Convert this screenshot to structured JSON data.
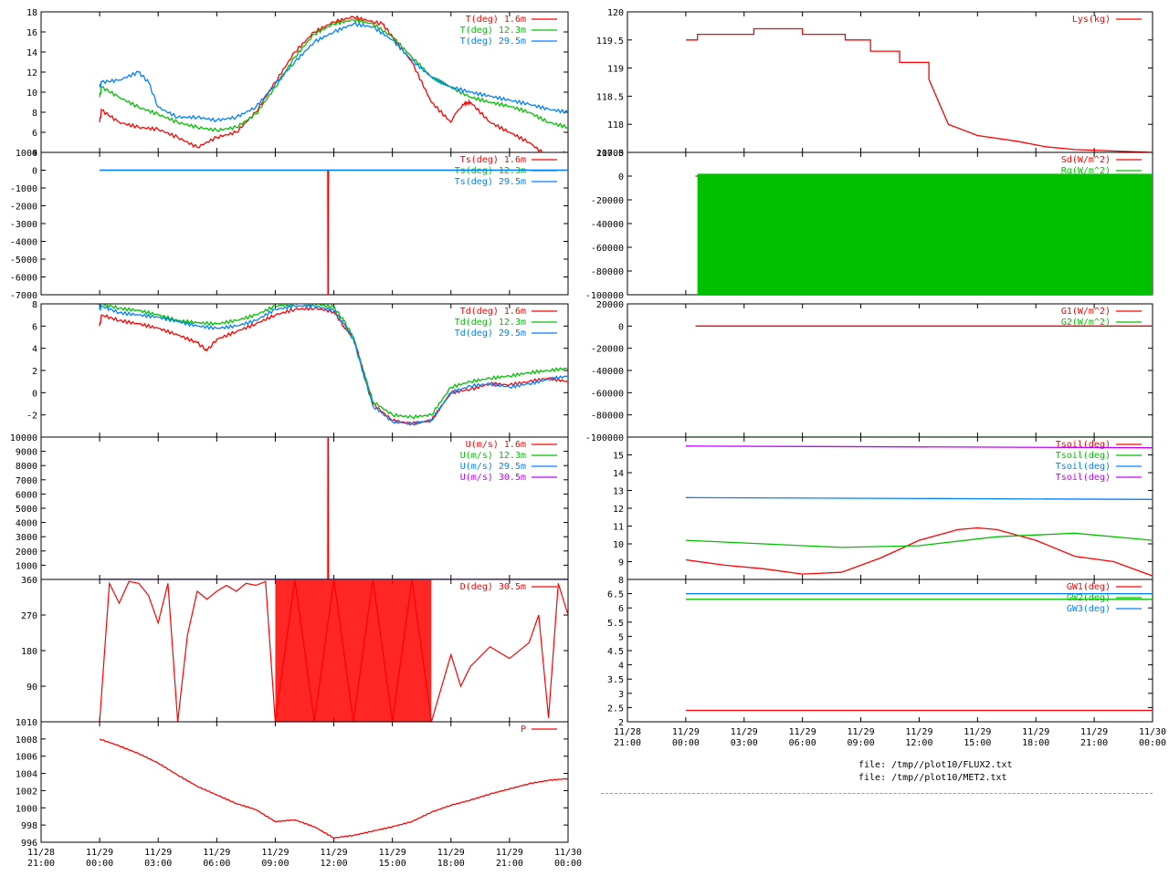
{
  "colors": {
    "red": "#ff0000",
    "green": "#00c000",
    "blue": "#0080ff",
    "magenta": "#c000ff"
  },
  "time_axis": {
    "range_hours": [
      -3,
      24
    ],
    "ticks": [
      {
        "h": -3,
        "date": "11/28",
        "time": "21:00"
      },
      {
        "h": 0,
        "date": "11/29",
        "time": "00:00"
      },
      {
        "h": 3,
        "date": "11/29",
        "time": "03:00"
      },
      {
        "h": 6,
        "date": "11/29",
        "time": "06:00"
      },
      {
        "h": 9,
        "date": "11/29",
        "time": "09:00"
      },
      {
        "h": 12,
        "date": "11/29",
        "time": "12:00"
      },
      {
        "h": 15,
        "date": "11/29",
        "time": "15:00"
      },
      {
        "h": 18,
        "date": "11/29",
        "time": "18:00"
      },
      {
        "h": 21,
        "date": "11/29",
        "time": "21:00"
      },
      {
        "h": 24,
        "date": "11/30",
        "time": "00:00"
      }
    ]
  },
  "files": [
    "file: /tmp//plot10/FLUX2.txt",
    "file: /tmp//plot10/MET2.txt"
  ],
  "chart_data": [
    {
      "id": "T",
      "type": "line",
      "ylim": [
        4,
        18
      ],
      "yticks": [
        4,
        6,
        8,
        10,
        12,
        14,
        16,
        18
      ],
      "series": [
        {
          "name": "T(deg)  1.6m",
          "color": "red",
          "x": [
            0,
            0.1,
            1,
            2,
            3,
            4,
            5,
            6,
            7,
            8,
            9,
            10,
            11,
            12,
            13,
            14,
            14.5,
            15,
            16,
            17,
            18,
            18.6,
            19,
            20,
            21,
            22,
            23,
            24
          ],
          "y": [
            7,
            8.2,
            7,
            6.5,
            6.3,
            5.5,
            4.5,
            5.5,
            6,
            8,
            11,
            14,
            16,
            17,
            17.5,
            17,
            16.8,
            15.5,
            13,
            9,
            7,
            8.8,
            9,
            7,
            6,
            5,
            3.5,
            4
          ]
        },
        {
          "name": "T(deg) 12.3m",
          "color": "green",
          "x": [
            0,
            0.1,
            1,
            2,
            3,
            4,
            5,
            6,
            7,
            8,
            9,
            10,
            11,
            12,
            13,
            14,
            15,
            16,
            17,
            18,
            19,
            20,
            21,
            22,
            23,
            24
          ],
          "y": [
            9.5,
            10.5,
            9.5,
            8.5,
            7.8,
            7,
            6.5,
            6.2,
            6.5,
            7.8,
            10.5,
            13.5,
            15.8,
            16.8,
            17.2,
            16.8,
            15.5,
            13.5,
            11.5,
            10.5,
            9.5,
            9,
            8.6,
            8,
            7,
            6.5
          ]
        },
        {
          "name": "T(deg) 29.5m",
          "color": "blue",
          "x": [
            0,
            0.1,
            1,
            2,
            2.5,
            3,
            4,
            5,
            6,
            7,
            8,
            9,
            10,
            11,
            12,
            13,
            14,
            15,
            16,
            17,
            18,
            19,
            20,
            21,
            22,
            23,
            24
          ],
          "y": [
            10.5,
            11,
            11.2,
            12,
            11,
            8.5,
            7.5,
            7.5,
            7.2,
            7.5,
            8.5,
            10.8,
            13,
            15,
            16,
            16.8,
            16.5,
            15.2,
            13.2,
            11.5,
            10.5,
            10,
            9.6,
            9.2,
            8.8,
            8.3,
            8
          ]
        }
      ]
    },
    {
      "id": "Ts",
      "type": "line",
      "ylim": [
        -7000,
        1000
      ],
      "yticks": [
        -7000,
        -6000,
        -5000,
        -4000,
        -3000,
        -2000,
        -1000,
        0,
        1000
      ],
      "series": [
        {
          "name": "Ts(deg)  1.6m",
          "color": "red",
          "x": [
            0,
            11.69,
            11.7,
            11.72,
            11.73,
            24
          ],
          "y": [
            0,
            0,
            -7000,
            -7000,
            0,
            0
          ]
        },
        {
          "name": "Ts(deg) 12.3m",
          "color": "green",
          "x": [
            0,
            24
          ],
          "y": [
            0,
            0
          ]
        },
        {
          "name": "Ts(deg) 29.5m",
          "color": "blue",
          "x": [
            0,
            24
          ],
          "y": [
            0,
            0
          ]
        }
      ]
    },
    {
      "id": "Td",
      "type": "line",
      "ylim": [
        -4,
        8
      ],
      "yticks": [
        -2,
        0,
        2,
        4,
        6,
        8
      ],
      "series": [
        {
          "name": "Td(deg)  1.6m",
          "color": "red",
          "x": [
            0,
            0.1,
            1,
            2,
            3,
            4,
            5,
            5.5,
            6,
            7,
            8,
            9,
            10,
            11,
            12,
            12.5,
            13,
            13.5,
            14,
            15,
            16,
            17,
            18,
            19,
            20,
            21,
            22,
            23,
            24
          ],
          "y": [
            6,
            7,
            6.5,
            6.2,
            5.8,
            5.2,
            4.5,
            3.8,
            4.8,
            5.5,
            6.2,
            7,
            7.5,
            7.6,
            7.3,
            6,
            5,
            2,
            -1,
            -2.5,
            -2.8,
            -2.5,
            0,
            0.3,
            0.8,
            0.7,
            1,
            1.3,
            1
          ]
        },
        {
          "name": "Td(deg) 12.3m",
          "color": "green",
          "x": [
            0,
            0.1,
            1,
            2,
            3,
            4,
            5,
            6,
            7,
            8,
            9,
            10,
            11,
            12,
            12.5,
            13,
            13.5,
            14,
            15,
            16,
            17,
            18,
            19,
            20,
            21,
            22,
            23,
            24
          ],
          "y": [
            7.5,
            8,
            7.6,
            7.4,
            7,
            6.5,
            6.3,
            6.2,
            6.5,
            7,
            7.8,
            8,
            8,
            7.7,
            6.5,
            5,
            2,
            -0.8,
            -2,
            -2.2,
            -2,
            0.5,
            1,
            1.3,
            1.5,
            1.8,
            2,
            2.2
          ]
        },
        {
          "name": "Td(deg) 29.5m",
          "color": "blue",
          "x": [
            0,
            0.1,
            1,
            2,
            3,
            4,
            5,
            6,
            7,
            8,
            9,
            10,
            11,
            12,
            12.5,
            13,
            13.5,
            14,
            15,
            16,
            17,
            18,
            19,
            20,
            21,
            22,
            23,
            24
          ],
          "y": [
            7.5,
            7.8,
            7.2,
            7,
            6.8,
            6.4,
            6,
            5.8,
            6,
            6.5,
            7.5,
            7.8,
            7.8,
            7.4,
            6.2,
            4.8,
            1.8,
            -1.2,
            -2.6,
            -2.8,
            -2.5,
            0,
            0.6,
            0.8,
            0.5,
            0.8,
            1.2,
            1.5
          ]
        }
      ]
    },
    {
      "id": "U",
      "type": "line",
      "ylim": [
        0,
        10000
      ],
      "yticks": [
        1000,
        2000,
        3000,
        4000,
        5000,
        6000,
        7000,
        8000,
        9000,
        10000
      ],
      "series": [
        {
          "name": "U(m/s)  1.6m",
          "color": "red",
          "x": [
            0,
            11.69,
            11.7,
            11.72,
            11.73,
            24
          ],
          "y": [
            0,
            0,
            10000,
            10000,
            0,
            0
          ]
        },
        {
          "name": "U(m/s) 12.3m",
          "color": "green",
          "x": [
            0,
            24
          ],
          "y": [
            0,
            0
          ]
        },
        {
          "name": "U(m/s) 29.5m",
          "color": "blue",
          "x": [
            0,
            24
          ],
          "y": [
            0,
            0
          ]
        },
        {
          "name": "U(m/s) 30.5m",
          "color": "magenta",
          "x": [
            0,
            24
          ],
          "y": [
            0,
            0
          ]
        }
      ]
    },
    {
      "id": "D",
      "type": "line",
      "ylim": [
        0,
        360
      ],
      "yticks": [
        90,
        180,
        270,
        360
      ],
      "series": [
        {
          "name": "D(deg)  30.5m",
          "color": "red",
          "x": [
            0,
            0.5,
            1,
            1.5,
            2,
            2.5,
            3,
            3.5,
            4,
            4.5,
            5,
            5.5,
            6,
            6.5,
            7,
            7.5,
            8,
            8.5,
            9,
            10,
            11,
            12,
            13,
            14,
            15,
            16,
            17,
            18,
            18.5,
            19,
            20,
            21,
            22,
            22.5,
            23,
            23.5,
            24
          ],
          "y": [
            0,
            350,
            300,
            355,
            350,
            320,
            250,
            350,
            0,
            220,
            330,
            310,
            330,
            345,
            330,
            350,
            345,
            355,
            0,
            360,
            0,
            360,
            0,
            360,
            0,
            360,
            0,
            170,
            90,
            140,
            190,
            160,
            200,
            270,
            10,
            350,
            270
          ]
        }
      ]
    },
    {
      "id": "P",
      "type": "line",
      "ylim": [
        996,
        1010
      ],
      "yticks": [
        996,
        998,
        1000,
        1002,
        1004,
        1006,
        1008,
        1010
      ],
      "series": [
        {
          "name": "P",
          "color": "red",
          "x": [
            0,
            1,
            2,
            3,
            4,
            5,
            6,
            7,
            8,
            9,
            10,
            11,
            12,
            13,
            14,
            15,
            16,
            17,
            18,
            19,
            20,
            21,
            22,
            23,
            24
          ],
          "y": [
            1008,
            1007.2,
            1006.3,
            1005.2,
            1003.8,
            1002.5,
            1001.5,
            1000.5,
            999.8,
            998.4,
            998.6,
            997.8,
            996.5,
            996.8,
            997.3,
            997.8,
            998.4,
            999.5,
            1000.3,
            1000.9,
            1001.6,
            1002.2,
            1002.8,
            1003.2,
            1003.4
          ]
        }
      ]
    },
    {
      "id": "Lys",
      "type": "line",
      "ylim": [
        117.5,
        120
      ],
      "yticks": [
        117.5,
        118,
        118.5,
        119,
        119.5,
        120
      ],
      "series": [
        {
          "name": "Lys(kg)",
          "color": "red",
          "x": [
            0,
            0.6,
            0.6,
            1.8,
            1.8,
            3.5,
            3.5,
            6,
            6,
            8.2,
            8.2,
            9.5,
            9.5,
            11,
            11,
            12.5,
            12.5,
            13.5,
            13.5,
            15,
            15,
            17,
            17,
            18.5,
            18.5,
            20,
            20,
            24
          ],
          "y": [
            119.5,
            119.5,
            119.6,
            119.6,
            119.6,
            119.6,
            119.7,
            119.7,
            119.6,
            119.6,
            119.5,
            119.5,
            119.3,
            119.3,
            119.1,
            119.1,
            118.8,
            118,
            118,
            117.8,
            117.8,
            117.7,
            117.7,
            117.6,
            117.6,
            117.55,
            117.55,
            117.5
          ]
        }
      ]
    },
    {
      "id": "Sd",
      "type": "line",
      "ylim": [
        -100000,
        20000
      ],
      "yticks": [
        -100000,
        -80000,
        -60000,
        -40000,
        -20000,
        0,
        20000
      ],
      "series": [
        {
          "name": "Sd(W/m^2)",
          "color": "red",
          "x": [
            0.5,
            24
          ],
          "y": [
            0,
            0
          ]
        },
        {
          "name": "Rg(W/m^2)",
          "color": "green",
          "x": [
            0.5,
            24
          ],
          "y": [
            0,
            0
          ]
        }
      ]
    },
    {
      "id": "G",
      "type": "line",
      "ylim": [
        -100000,
        20000
      ],
      "yticks": [
        -100000,
        -80000,
        -60000,
        -40000,
        -20000,
        0,
        20000
      ],
      "series": [
        {
          "name": "G1(W/m^2)",
          "color": "red",
          "x": [
            0.5,
            24
          ],
          "y": [
            0,
            0
          ]
        },
        {
          "name": "G2(W/m^2)",
          "color": "green",
          "x": [
            0,
            24
          ],
          "y": [
            -100000,
            -100000
          ]
        }
      ]
    },
    {
      "id": "Tsoil",
      "type": "line",
      "ylim": [
        8,
        16
      ],
      "yticks": [
        8,
        9,
        10,
        11,
        12,
        13,
        14,
        15
      ],
      "series": [
        {
          "name": "Tsoil(deg)",
          "color": "red",
          "x": [
            0,
            2,
            4,
            6,
            8,
            10,
            12,
            14,
            15,
            16,
            18,
            20,
            22,
            24
          ],
          "y": [
            9.1,
            8.8,
            8.6,
            8.3,
            8.4,
            9.2,
            10.2,
            10.8,
            10.9,
            10.8,
            10.2,
            9.3,
            9,
            8.2
          ]
        },
        {
          "name": "Tsoil(deg)",
          "color": "green",
          "x": [
            0,
            4,
            8,
            12,
            16,
            20,
            24
          ],
          "y": [
            10.2,
            10,
            9.8,
            9.9,
            10.4,
            10.6,
            10.2
          ]
        },
        {
          "name": "Tsoil(deg)",
          "color": "blue",
          "x": [
            0,
            24
          ],
          "y": [
            12.6,
            12.5
          ]
        },
        {
          "name": "Tsoil(deg)",
          "color": "magenta",
          "x": [
            0,
            24
          ],
          "y": [
            15.5,
            15.4
          ]
        }
      ]
    },
    {
      "id": "GW",
      "type": "line",
      "ylim": [
        2,
        7
      ],
      "yticks": [
        2,
        2.5,
        3,
        3.5,
        4,
        4.5,
        5,
        5.5,
        6,
        6.5
      ],
      "series": [
        {
          "name": "GW1(deg)",
          "color": "red",
          "x": [
            0,
            24
          ],
          "y": [
            2.4,
            2.4
          ]
        },
        {
          "name": "GW2(deg)",
          "color": "green",
          "x": [
            0,
            24
          ],
          "y": [
            6.3,
            6.3
          ]
        },
        {
          "name": "GW3(deg)",
          "color": "blue",
          "x": [
            0,
            24
          ],
          "y": [
            6.5,
            6.5
          ]
        }
      ]
    }
  ]
}
